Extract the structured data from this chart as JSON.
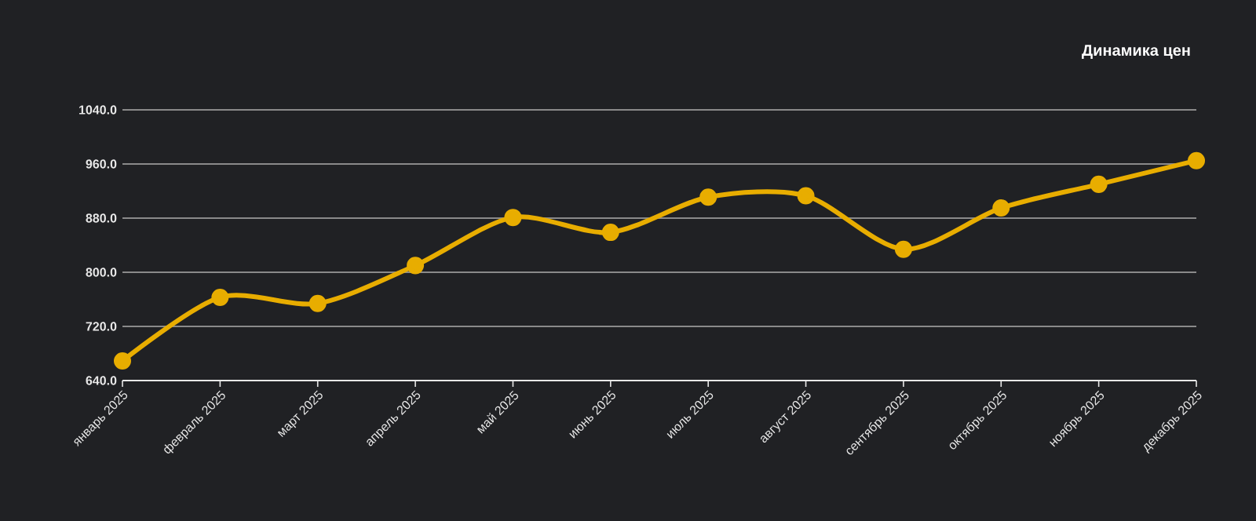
{
  "chart_data": {
    "type": "line",
    "title": "Динамика цен",
    "categories": [
      "январь 2025",
      "февраль 2025",
      "март 2025",
      "апрель 2025",
      "май 2025",
      "июнь 2025",
      "июль 2025",
      "август 2025",
      "сентябрь 2025",
      "октябрь 2025",
      "ноябрь 2025",
      "декабрь 2025"
    ],
    "series": [
      {
        "color": "#e8ad00",
        "values": [
          669,
          763,
          754,
          810,
          881,
          859,
          911,
          913,
          834,
          895,
          930,
          965
        ]
      }
    ],
    "ylim": [
      640,
      1040
    ],
    "yticks": [
      {
        "value": 640,
        "label": "640.0"
      },
      {
        "value": 720,
        "label": "720.0"
      },
      {
        "value": 800,
        "label": "800.0"
      },
      {
        "value": 880,
        "label": "880.0"
      },
      {
        "value": 960,
        "label": "960.0"
      },
      {
        "value": 1040,
        "label": "1040.0"
      }
    ],
    "grid": "y",
    "marker": "circle",
    "line_style": "solid"
  }
}
